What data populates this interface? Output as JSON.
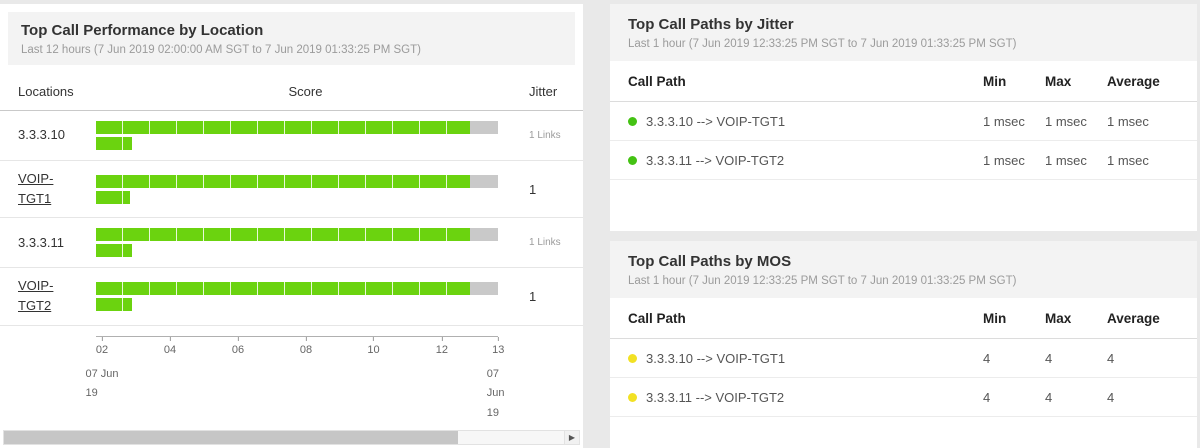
{
  "colors": {
    "bar_green": "#6bd30f",
    "bar_tail_gray": "#c9c9c9",
    "dot_green": "#44c213",
    "dot_yellow": "#f2e124"
  },
  "icons": {
    "scroll_right_arrow": "▶"
  },
  "location_panel": {
    "title": "Top Call Performance by Location",
    "subtitle": "Last 12 hours (7 Jun 2019 02:00:00 AM SGT to 7 Jun 2019 01:33:25 PM SGT)",
    "columns": [
      "Locations",
      "Score",
      "Jitter"
    ],
    "rows": [
      {
        "label": "3.3.3.10",
        "bar_pct": 93,
        "sub_bar_pct": 9,
        "jitter": "1 Links"
      },
      {
        "label": "VOIP-TGT1",
        "bar_pct": 93,
        "sub_bar_pct": 8.5,
        "jitter": "1"
      },
      {
        "label": "3.3.3.11",
        "bar_pct": 93,
        "sub_bar_pct": 9,
        "jitter": "1 Links"
      },
      {
        "label": "VOIP-TGT2",
        "bar_pct": 93,
        "sub_bar_pct": 9,
        "jitter": "1"
      }
    ],
    "axis": {
      "ticks": [
        "02",
        "04",
        "06",
        "08",
        "10",
        "12",
        "13"
      ],
      "start_date_line1": "07 Jun",
      "start_date_line2": "19",
      "end_date_line1": "07 Jun",
      "end_date_line2": "19"
    }
  },
  "jitter_panel": {
    "title": "Top Call Paths by Jitter",
    "subtitle": "Last 1 hour (7 Jun 2019 12:33:25 PM SGT to 7 Jun 2019 01:33:25 PM SGT)",
    "columns": [
      "Call Path",
      "Min",
      "Max",
      "Average"
    ],
    "rows": [
      {
        "path": "3.3.3.10 --> VOIP-TGT1",
        "min": "1 msec",
        "max": "1 msec",
        "avg": "1 msec"
      },
      {
        "path": "3.3.3.11 --> VOIP-TGT2",
        "min": "1 msec",
        "max": "1 msec",
        "avg": "1 msec"
      }
    ]
  },
  "mos_panel": {
    "title": "Top Call Paths by MOS",
    "subtitle": "Last 1 hour (7 Jun 2019 12:33:25 PM SGT to 7 Jun 2019 01:33:25 PM SGT)",
    "columns": [
      "Call Path",
      "Min",
      "Max",
      "Average"
    ],
    "rows": [
      {
        "path": "3.3.3.10 --> VOIP-TGT1",
        "min": "4",
        "max": "4",
        "avg": "4"
      },
      {
        "path": "3.3.3.11 --> VOIP-TGT2",
        "min": "4",
        "max": "4",
        "avg": "4"
      }
    ]
  }
}
